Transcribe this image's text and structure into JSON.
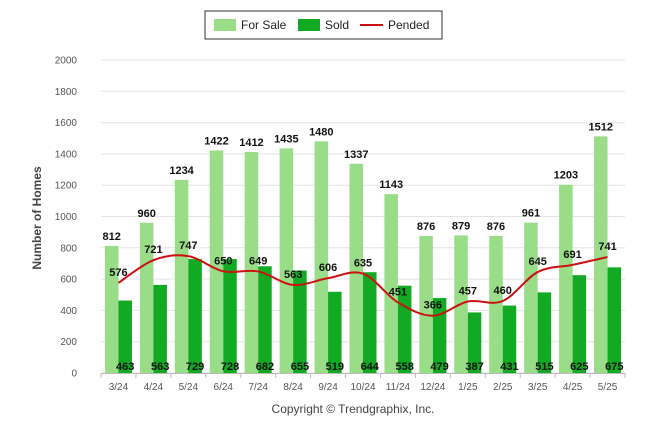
{
  "chart_data": {
    "type": "bar",
    "categories": [
      "3/24",
      "4/24",
      "5/24",
      "6/24",
      "7/24",
      "8/24",
      "9/24",
      "10/24",
      "11/24",
      "12/24",
      "1/25",
      "2/25",
      "3/25",
      "4/25",
      "5/25"
    ],
    "series": [
      {
        "name": "For Sale",
        "kind": "bar",
        "color": "#99dd88",
        "values": [
          812,
          960,
          1234,
          1422,
          1412,
          1435,
          1480,
          1337,
          1143,
          876,
          879,
          876,
          961,
          1203,
          1512
        ]
      },
      {
        "name": "Sold",
        "kind": "bar",
        "color": "#11aa22",
        "values": [
          463,
          563,
          729,
          728,
          682,
          655,
          519,
          644,
          558,
          479,
          387,
          431,
          515,
          625,
          675
        ]
      },
      {
        "name": "Pended",
        "kind": "line",
        "color": "#cc1111",
        "values": [
          576,
          721,
          747,
          650,
          649,
          563,
          606,
          635,
          451,
          366,
          457,
          460,
          645,
          691,
          741
        ]
      }
    ],
    "title": "",
    "xlabel": "",
    "ylabel": "Number of Homes",
    "ylim": [
      0,
      2000
    ],
    "yticks": [
      0,
      200,
      400,
      600,
      800,
      1000,
      1200,
      1400,
      1600,
      1800,
      2000
    ],
    "grid": true,
    "legend_position": "top-center"
  },
  "copyright": "Copyright © Trendgraphix, Inc."
}
